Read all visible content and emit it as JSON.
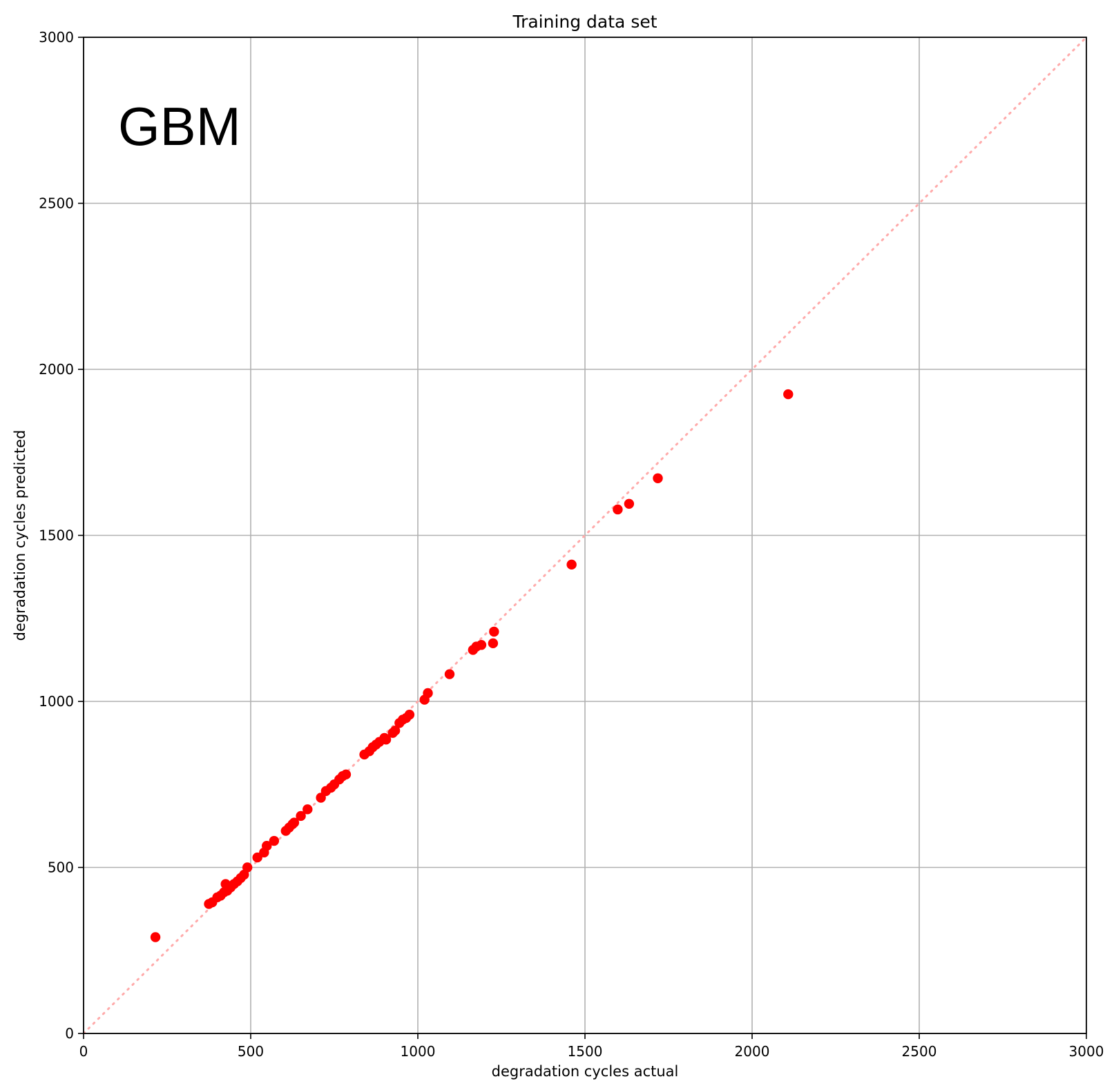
{
  "chart_data": {
    "type": "scatter",
    "title": "Training data set",
    "xlabel": "degradation cycles actual",
    "ylabel": "degradation cycles predicted",
    "xlim": [
      0,
      3000
    ],
    "ylim": [
      0,
      3000
    ],
    "xticks": [
      0,
      500,
      1000,
      1500,
      2000,
      2500,
      3000
    ],
    "yticks": [
      0,
      500,
      1000,
      1500,
      2000,
      2500,
      3000
    ],
    "grid": true,
    "annotation": "GBM",
    "point_color": "#ff0000",
    "reference_line": {
      "style": "dotted",
      "color": "#ffaaaa",
      "from": [
        0,
        0
      ],
      "to": [
        3000,
        3000
      ]
    },
    "series": [
      {
        "points": [
          [
            215,
            290
          ],
          [
            375,
            390
          ],
          [
            385,
            395
          ],
          [
            400,
            410
          ],
          [
            410,
            415
          ],
          [
            420,
            425
          ],
          [
            425,
            450
          ],
          [
            430,
            430
          ],
          [
            440,
            440
          ],
          [
            450,
            450
          ],
          [
            460,
            458
          ],
          [
            470,
            468
          ],
          [
            480,
            478
          ],
          [
            490,
            500
          ],
          [
            520,
            530
          ],
          [
            540,
            545
          ],
          [
            548,
            565
          ],
          [
            570,
            580
          ],
          [
            605,
            610
          ],
          [
            615,
            620
          ],
          [
            625,
            630
          ],
          [
            630,
            635
          ],
          [
            650,
            655
          ],
          [
            670,
            675
          ],
          [
            710,
            710
          ],
          [
            725,
            730
          ],
          [
            740,
            740
          ],
          [
            750,
            750
          ],
          [
            765,
            765
          ],
          [
            775,
            775
          ],
          [
            785,
            780
          ],
          [
            840,
            840
          ],
          [
            855,
            850
          ],
          [
            865,
            862
          ],
          [
            875,
            870
          ],
          [
            885,
            878
          ],
          [
            900,
            890
          ],
          [
            905,
            885
          ],
          [
            925,
            905
          ],
          [
            932,
            912
          ],
          [
            945,
            935
          ],
          [
            955,
            945
          ],
          [
            965,
            950
          ],
          [
            975,
            960
          ],
          [
            1020,
            1005
          ],
          [
            1030,
            1025
          ],
          [
            1095,
            1082
          ],
          [
            1165,
            1155
          ],
          [
            1175,
            1165
          ],
          [
            1190,
            1170
          ],
          [
            1225,
            1175
          ],
          [
            1228,
            1210
          ],
          [
            1460,
            1412
          ],
          [
            1598,
            1578
          ],
          [
            1632,
            1595
          ],
          [
            1718,
            1672
          ],
          [
            2108,
            1925
          ]
        ]
      }
    ]
  }
}
